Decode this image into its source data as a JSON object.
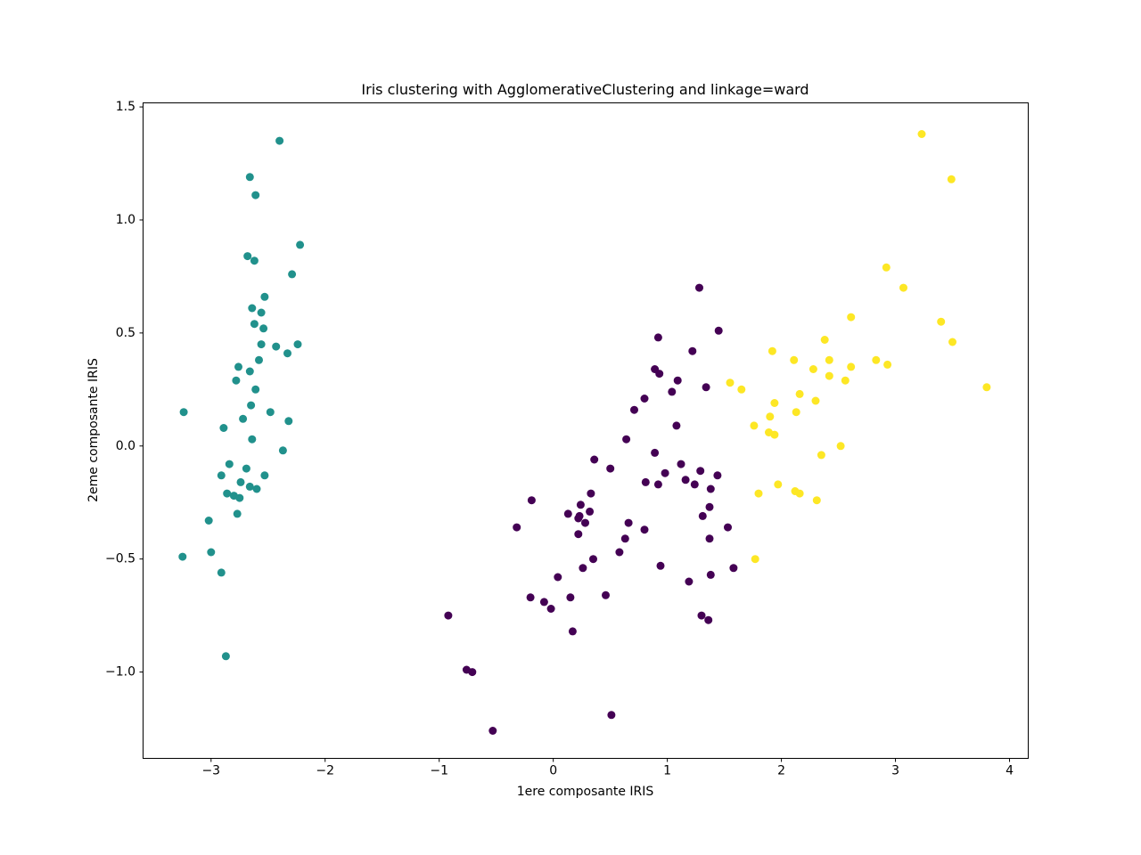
{
  "chart_data": {
    "type": "scatter",
    "title": "Iris clustering with AgglomerativeClustering and linkage=ward",
    "xlabel": "1ere composante IRIS",
    "ylabel": "2eme composante IRIS",
    "xlim": [
      -3.6,
      4.16
    ],
    "ylim": [
      -1.38,
      1.52
    ],
    "grid": false,
    "legend": "none",
    "background_color": "#ffffff",
    "axis_color": "#000000",
    "xticks": {
      "values": [
        -3,
        -2,
        -1,
        0,
        1,
        2,
        3,
        4
      ],
      "labels": [
        "−3",
        "−2",
        "−1",
        "0",
        "1",
        "2",
        "3",
        "4"
      ]
    },
    "yticks": {
      "values": [
        1.5,
        1.0,
        0.5,
        0.0,
        -0.5,
        -1.0
      ],
      "labels": [
        "1.5",
        "1.0",
        "0.5",
        "0.0",
        "−0.5",
        "−1.0"
      ]
    },
    "series": [
      {
        "name": "cluster-0-purple",
        "color": "#440154",
        "points": [
          [
            1.28,
            0.7
          ],
          [
            1.45,
            0.51
          ],
          [
            0.92,
            0.48
          ],
          [
            1.22,
            0.42
          ],
          [
            0.89,
            0.34
          ],
          [
            0.93,
            0.32
          ],
          [
            1.09,
            0.29
          ],
          [
            1.34,
            0.26
          ],
          [
            1.04,
            0.24
          ],
          [
            0.8,
            0.21
          ],
          [
            0.71,
            0.16
          ],
          [
            1.08,
            0.09
          ],
          [
            0.64,
            0.03
          ],
          [
            0.89,
            -0.03
          ],
          [
            0.36,
            -0.06
          ],
          [
            1.12,
            -0.08
          ],
          [
            0.5,
            -0.1
          ],
          [
            1.29,
            -0.11
          ],
          [
            0.98,
            -0.12
          ],
          [
            0.81,
            -0.16
          ],
          [
            1.16,
            -0.15
          ],
          [
            1.24,
            -0.17
          ],
          [
            0.92,
            -0.17
          ],
          [
            1.38,
            -0.19
          ],
          [
            -0.19,
            -0.24
          ],
          [
            0.33,
            -0.21
          ],
          [
            0.24,
            -0.26
          ],
          [
            1.37,
            -0.27
          ],
          [
            0.32,
            -0.29
          ],
          [
            0.13,
            -0.3
          ],
          [
            0.23,
            -0.31
          ],
          [
            1.31,
            -0.31
          ],
          [
            0.22,
            -0.32
          ],
          [
            0.28,
            -0.34
          ],
          [
            -0.32,
            -0.36
          ],
          [
            0.66,
            -0.34
          ],
          [
            0.8,
            -0.37
          ],
          [
            0.22,
            -0.39
          ],
          [
            1.37,
            -0.41
          ],
          [
            0.63,
            -0.41
          ],
          [
            1.44,
            -0.13
          ],
          [
            0.58,
            -0.47
          ],
          [
            0.35,
            -0.5
          ],
          [
            0.26,
            -0.54
          ],
          [
            0.94,
            -0.53
          ],
          [
            0.04,
            -0.58
          ],
          [
            1.19,
            -0.6
          ],
          [
            1.38,
            -0.57
          ],
          [
            1.53,
            -0.36
          ],
          [
            1.58,
            -0.54
          ],
          [
            -0.2,
            -0.67
          ],
          [
            -0.08,
            -0.69
          ],
          [
            -0.02,
            -0.72
          ],
          [
            0.15,
            -0.67
          ],
          [
            0.46,
            -0.66
          ],
          [
            -0.92,
            -0.75
          ],
          [
            1.3,
            -0.75
          ],
          [
            1.36,
            -0.77
          ],
          [
            0.17,
            -0.82
          ],
          [
            -0.76,
            -0.99
          ],
          [
            -0.71,
            -1.0
          ],
          [
            0.51,
            -1.19
          ],
          [
            -0.53,
            -1.26
          ]
        ]
      },
      {
        "name": "cluster-1-teal",
        "color": "#21918c",
        "points": [
          [
            -2.4,
            1.35
          ],
          [
            -2.66,
            1.19
          ],
          [
            -2.61,
            1.11
          ],
          [
            -2.22,
            0.89
          ],
          [
            -2.68,
            0.84
          ],
          [
            -2.62,
            0.82
          ],
          [
            -2.29,
            0.76
          ],
          [
            -2.53,
            0.66
          ],
          [
            -2.64,
            0.61
          ],
          [
            -2.56,
            0.59
          ],
          [
            -2.62,
            0.54
          ],
          [
            -2.54,
            0.52
          ],
          [
            -2.56,
            0.45
          ],
          [
            -2.43,
            0.44
          ],
          [
            -2.24,
            0.45
          ],
          [
            -2.33,
            0.41
          ],
          [
            -2.58,
            0.38
          ],
          [
            -2.76,
            0.35
          ],
          [
            -2.66,
            0.33
          ],
          [
            -2.78,
            0.29
          ],
          [
            -2.61,
            0.25
          ],
          [
            -2.65,
            0.18
          ],
          [
            -3.24,
            0.15
          ],
          [
            -2.48,
            0.15
          ],
          [
            -2.72,
            0.12
          ],
          [
            -2.32,
            0.11
          ],
          [
            -2.89,
            0.08
          ],
          [
            -2.64,
            0.03
          ],
          [
            -2.37,
            -0.02
          ],
          [
            -2.84,
            -0.08
          ],
          [
            -2.69,
            -0.1
          ],
          [
            -2.91,
            -0.13
          ],
          [
            -2.53,
            -0.13
          ],
          [
            -2.74,
            -0.16
          ],
          [
            -2.66,
            -0.18
          ],
          [
            -2.6,
            -0.19
          ],
          [
            -2.86,
            -0.21
          ],
          [
            -2.8,
            -0.22
          ],
          [
            -2.75,
            -0.23
          ],
          [
            -2.77,
            -0.3
          ],
          [
            -3.02,
            -0.33
          ],
          [
            -3.0,
            -0.47
          ],
          [
            -3.25,
            -0.49
          ],
          [
            -2.91,
            -0.56
          ],
          [
            -2.87,
            -0.93
          ]
        ]
      },
      {
        "name": "cluster-2-yellow",
        "color": "#fde725",
        "points": [
          [
            3.23,
            1.38
          ],
          [
            3.49,
            1.18
          ],
          [
            2.92,
            0.79
          ],
          [
            3.07,
            0.7
          ],
          [
            2.61,
            0.57
          ],
          [
            3.4,
            0.55
          ],
          [
            3.5,
            0.46
          ],
          [
            2.83,
            0.38
          ],
          [
            2.93,
            0.36
          ],
          [
            3.8,
            0.26
          ],
          [
            2.38,
            0.47
          ],
          [
            1.92,
            0.42
          ],
          [
            2.11,
            0.38
          ],
          [
            2.42,
            0.38
          ],
          [
            2.28,
            0.34
          ],
          [
            2.61,
            0.35
          ],
          [
            2.42,
            0.31
          ],
          [
            2.56,
            0.29
          ],
          [
            1.55,
            0.28
          ],
          [
            1.65,
            0.25
          ],
          [
            2.16,
            0.23
          ],
          [
            2.3,
            0.2
          ],
          [
            1.94,
            0.19
          ],
          [
            2.13,
            0.15
          ],
          [
            1.9,
            0.13
          ],
          [
            1.76,
            0.09
          ],
          [
            1.89,
            0.06
          ],
          [
            1.94,
            0.05
          ],
          [
            2.52,
            0.0
          ],
          [
            2.35,
            -0.04
          ],
          [
            1.97,
            -0.17
          ],
          [
            1.8,
            -0.21
          ],
          [
            2.12,
            -0.2
          ],
          [
            2.16,
            -0.21
          ],
          [
            2.31,
            -0.24
          ],
          [
            1.77,
            -0.5
          ]
        ]
      }
    ]
  }
}
